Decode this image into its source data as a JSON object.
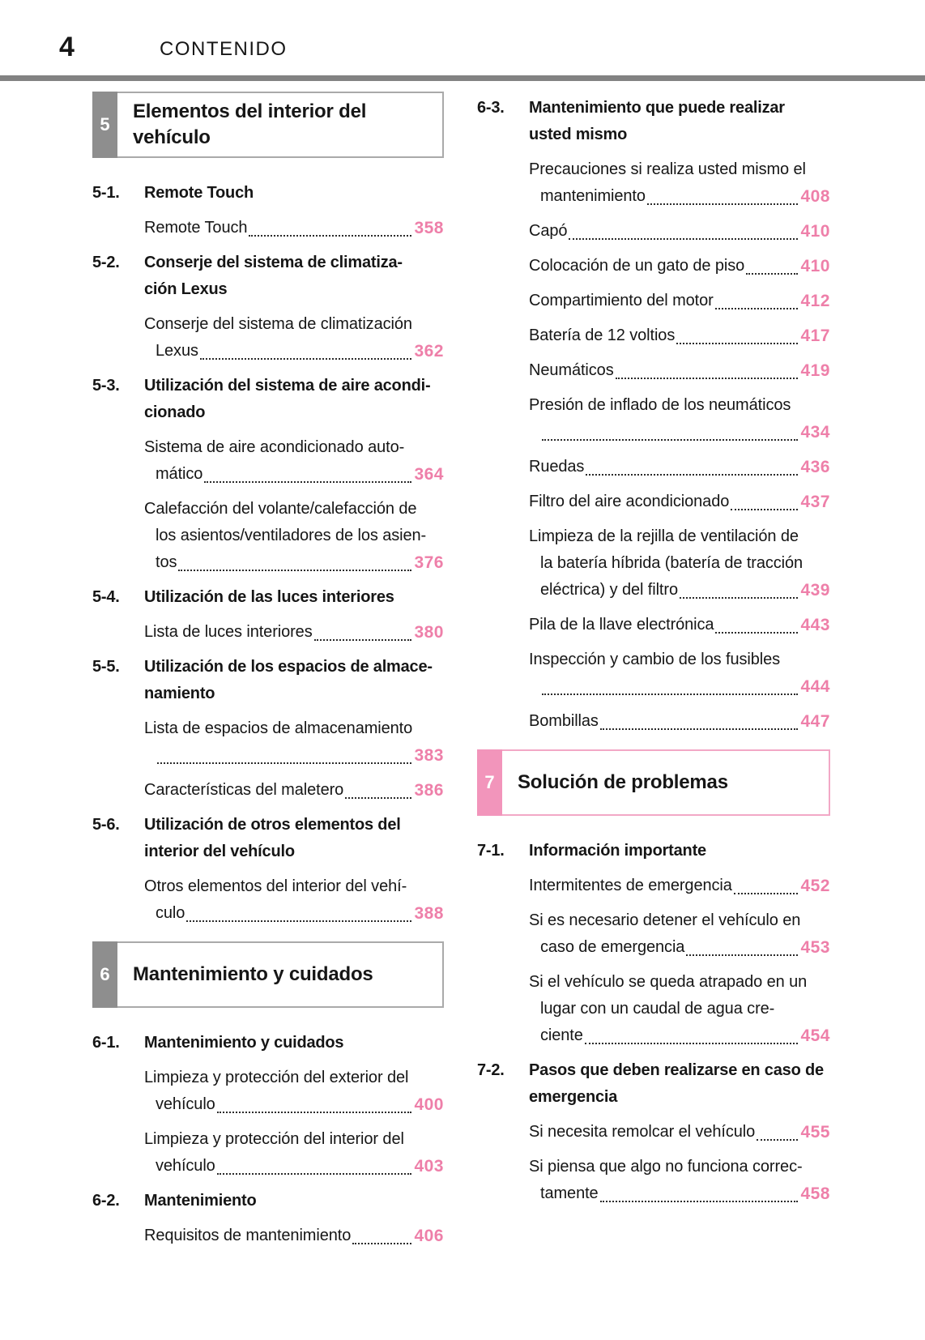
{
  "header": {
    "page_number": "4",
    "title": "CONTENIDO"
  },
  "colors": {
    "page_number_pink": "#ee7fa9",
    "section_tab_gray": "#8e8e8e",
    "section_tab_pink": "#f295bb",
    "section_border_gray": "#aaaaaa",
    "section_border_pink": "#f2a8c6",
    "header_rule_gray": "#828282"
  },
  "columns": [
    {
      "blocks": [
        {
          "type": "section",
          "tab": "5",
          "style": "gray",
          "title_lines": [
            "Elementos del interior del",
            "vehículo"
          ]
        },
        {
          "type": "item",
          "num": "5-1.",
          "title_lines": [
            "Remote Touch"
          ],
          "subs": [
            {
              "lines": [],
              "last": "Remote Touch",
              "page": "358"
            }
          ]
        },
        {
          "type": "item",
          "num": "5-2.",
          "title_lines": [
            "Conserje del sistema de climatiza-",
            "ción Lexus"
          ],
          "subs": [
            {
              "lines": [
                "Conserje del sistema de climatización"
              ],
              "last": "Lexus",
              "page": "362"
            }
          ]
        },
        {
          "type": "item",
          "num": "5-3.",
          "title_lines": [
            "Utilización del sistema de aire acondi-",
            "cionado"
          ],
          "subs": [
            {
              "lines": [
                "Sistema de aire acondicionado auto-"
              ],
              "last": "mático",
              "page": "364"
            },
            {
              "lines": [
                "Calefacción del volante/calefacción de",
                "los asientos/ventiladores de los asien-"
              ],
              "last": "tos",
              "page": "376"
            }
          ]
        },
        {
          "type": "item",
          "num": "5-4.",
          "title_lines": [
            "Utilización de las luces interiores"
          ],
          "subs": [
            {
              "lines": [],
              "last": "Lista de luces interiores",
              "page": "380"
            }
          ]
        },
        {
          "type": "item",
          "num": "5-5.",
          "title_lines": [
            "Utilización de los espacios de almace-",
            "namiento"
          ],
          "subs": [
            {
              "lines": [
                "Lista de espacios de almacenamiento"
              ],
              "last": "",
              "page": "383"
            },
            {
              "lines": [],
              "last": "Características del maletero",
              "page": "386"
            }
          ]
        },
        {
          "type": "item",
          "num": "5-6.",
          "title_lines": [
            "Utilización de otros elementos del",
            "interior del vehículo"
          ],
          "subs": [
            {
              "lines": [
                "Otros elementos del interior del vehí-"
              ],
              "last": "culo",
              "page": "388"
            }
          ]
        },
        {
          "type": "section",
          "tab": "6",
          "style": "gray",
          "title_lines": [
            "Mantenimiento y cuidados"
          ]
        },
        {
          "type": "item",
          "num": "6-1.",
          "title_lines": [
            "Mantenimiento y cuidados"
          ],
          "subs": [
            {
              "lines": [
                "Limpieza y protección del exterior del"
              ],
              "last": "vehículo",
              "page": "400"
            },
            {
              "lines": [
                "Limpieza y protección del interior del"
              ],
              "last": "vehículo",
              "page": "403"
            }
          ]
        },
        {
          "type": "item",
          "num": "6-2.",
          "title_lines": [
            "Mantenimiento"
          ],
          "subs": [
            {
              "lines": [],
              "last": "Requisitos de mantenimiento",
              "page": "406"
            }
          ]
        }
      ]
    },
    {
      "blocks": [
        {
          "type": "item",
          "num": "6-3.",
          "title_lines": [
            "Mantenimiento que puede realizar",
            "usted mismo"
          ],
          "subs": [
            {
              "lines": [
                "Precauciones si realiza usted mismo el"
              ],
              "last": "mantenimiento",
              "page": "408"
            },
            {
              "lines": [],
              "last": "Capó",
              "page": "410"
            },
            {
              "lines": [],
              "last": "Colocación de un gato de piso",
              "page": "410"
            },
            {
              "lines": [],
              "last": "Compartimiento del motor",
              "page": "412"
            },
            {
              "lines": [],
              "last": "Batería de 12 voltios",
              "page": "417"
            },
            {
              "lines": [],
              "last": "Neumáticos",
              "page": "419"
            },
            {
              "lines": [
                "Presión de inflado de los neumáticos"
              ],
              "last": "",
              "page": "434"
            },
            {
              "lines": [],
              "last": "Ruedas",
              "page": "436"
            },
            {
              "lines": [],
              "last": "Filtro del aire acondicionado",
              "page": "437"
            },
            {
              "lines": [
                "Limpieza de la rejilla de ventilación de",
                "la batería híbrida (batería de tracción"
              ],
              "last": "eléctrica) y del filtro",
              "page": "439"
            },
            {
              "lines": [],
              "last": "Pila de la llave electrónica",
              "page": "443"
            },
            {
              "lines": [
                "Inspección y cambio de los fusibles"
              ],
              "last": "",
              "page": "444"
            },
            {
              "lines": [],
              "last": "Bombillas",
              "page": "447"
            }
          ]
        },
        {
          "type": "section",
          "tab": "7",
          "style": "pink",
          "title_lines": [
            "Solución de problemas"
          ]
        },
        {
          "type": "item",
          "num": "7-1.",
          "title_lines": [
            "Información importante"
          ],
          "subs": [
            {
              "lines": [],
              "last": "Intermitentes de emergencia",
              "page": "452"
            },
            {
              "lines": [
                "Si es necesario detener el vehículo en"
              ],
              "last": "caso de emergencia",
              "page": "453"
            },
            {
              "lines": [
                "Si el vehículo se queda atrapado en un",
                "lugar con un caudal de agua cre-"
              ],
              "last": "ciente",
              "page": "454"
            }
          ]
        },
        {
          "type": "item",
          "num": "7-2.",
          "title_lines": [
            "Pasos que deben realizarse en caso de",
            "emergencia"
          ],
          "subs": [
            {
              "lines": [],
              "last": "Si necesita remolcar el vehículo",
              "page": "455"
            },
            {
              "lines": [
                "Si piensa que algo no funciona correc-"
              ],
              "last": "tamente",
              "page": "458"
            }
          ]
        }
      ]
    }
  ]
}
